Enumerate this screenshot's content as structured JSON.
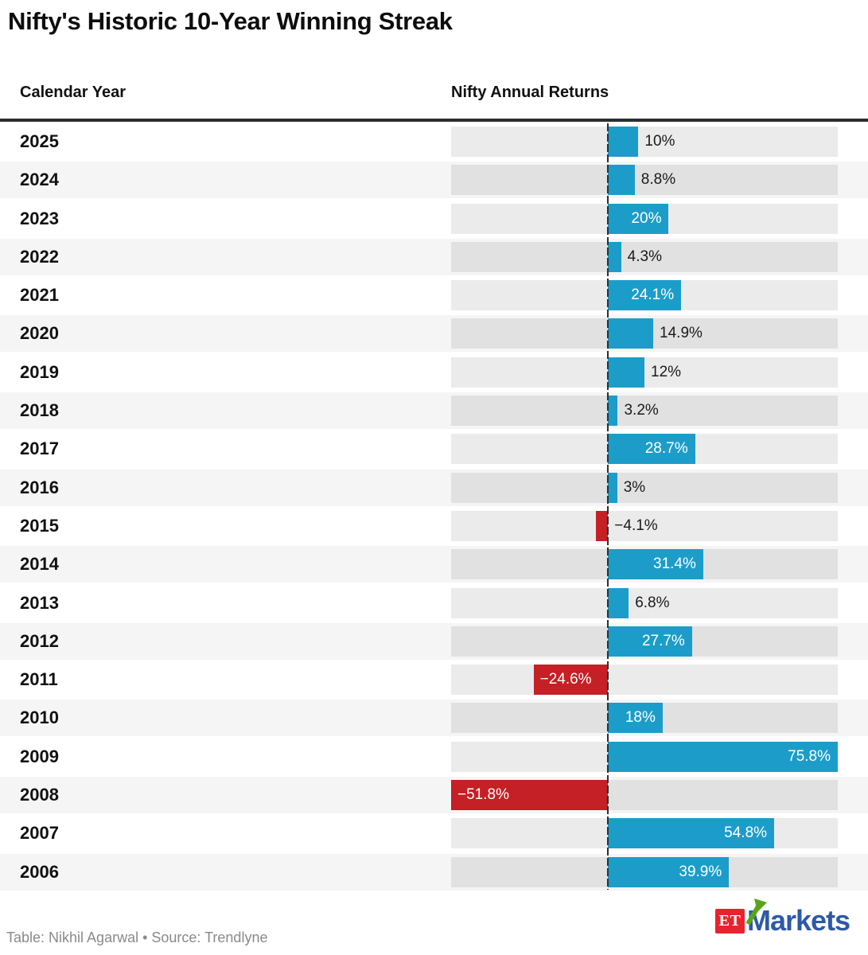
{
  "page": {
    "title": "Nifty's Historic 10-Year Winning Streak",
    "column_headers": {
      "year": "Calendar Year",
      "returns": "Nifty Annual Returns"
    },
    "footer_credit": "Table: Nikhil Agarwal • Source: Trendlyne",
    "logo": {
      "et": "ET",
      "markets": "Markets"
    }
  },
  "chart_data": {
    "type": "bar",
    "orientation": "horizontal",
    "title": "Nifty's Historic 10-Year Winning Streak",
    "xlabel": "Nifty Annual Returns",
    "ylabel": "Calendar Year",
    "categories": [
      "2025",
      "2024",
      "2023",
      "2022",
      "2021",
      "2020",
      "2019",
      "2018",
      "2017",
      "2016",
      "2015",
      "2014",
      "2013",
      "2012",
      "2011",
      "2010",
      "2009",
      "2008",
      "2007",
      "2006"
    ],
    "values": [
      10,
      8.8,
      20,
      4.3,
      24.1,
      14.9,
      12,
      3.2,
      28.7,
      3,
      -4.1,
      31.4,
      6.8,
      27.7,
      -24.6,
      18,
      75.8,
      -51.8,
      54.8,
      39.9
    ],
    "labels": [
      "10%",
      "8.8%",
      "20%",
      "4.3%",
      "24.1%",
      "14.9%",
      "12%",
      "3.2%",
      "28.7%",
      "3%",
      "−4.1%",
      "31.4%",
      "6.8%",
      "27.7%",
      "−24.6%",
      "18%",
      "75.8%",
      "−51.8%",
      "54.8%",
      "39.9%"
    ],
    "xlim": [
      -51.8,
      75.8
    ],
    "grid": false,
    "legend": false,
    "inside_label_threshold": 16,
    "colors": {
      "positive_bar": "#1c9dc9",
      "negative_bar": "#c42025",
      "track": "rgba(17,17,17,0.082)",
      "zero_line": "#2e2e2e",
      "row_alt_background": "#f5f5f5",
      "inside_label": "#ffffff",
      "outside_label": "#1a1a1a"
    }
  }
}
